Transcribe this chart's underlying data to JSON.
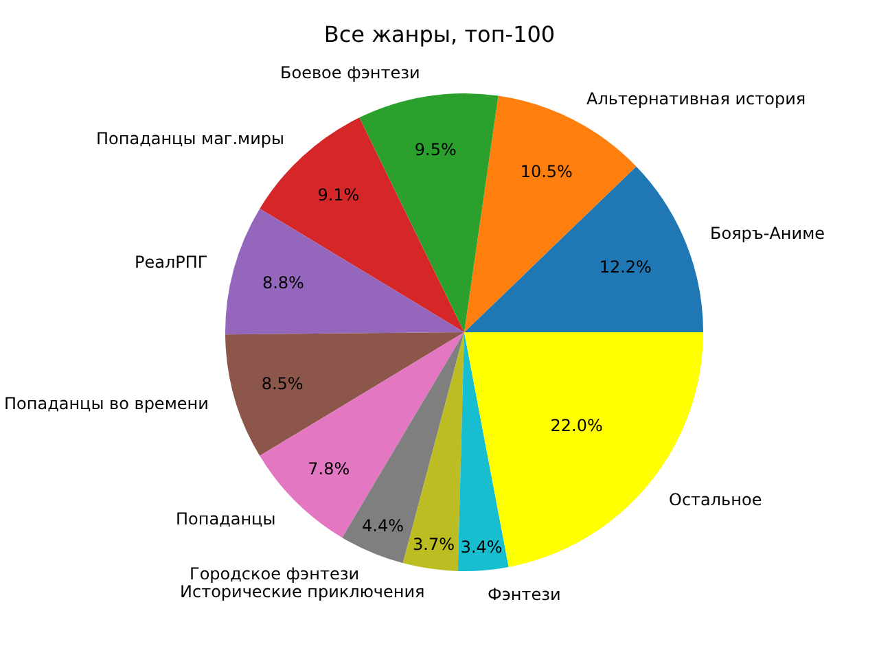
{
  "chart_data": {
    "type": "pie",
    "title": "Все жанры, топ-100",
    "categories": [
      "Бояръ-Аниме",
      "Альтернативная история",
      "Боевое фэнтези",
      "Попаданцы маг.миры",
      "РеалРПГ",
      "Попаданцы во времени",
      "Попаданцы",
      "Городское фэнтези",
      "Исторические приключения",
      "Фэнтези",
      "Остальное"
    ],
    "values": [
      12.2,
      10.5,
      9.5,
      9.1,
      8.8,
      8.5,
      7.8,
      4.4,
      3.7,
      3.4,
      22.0
    ],
    "value_labels": [
      "12.2%",
      "10.5%",
      "9.5%",
      "9.1%",
      "8.8%",
      "8.5%",
      "7.8%",
      "4.4%",
      "3.7%",
      "3.4%",
      "22.0%"
    ],
    "colors": [
      "#1f77b4",
      "#ff7f0e",
      "#2ca02c",
      "#d62728",
      "#9467bd",
      "#8c564b",
      "#e377c2",
      "#7f7f7f",
      "#bcbd22",
      "#17becf",
      "#ffff00"
    ],
    "legend": false
  }
}
